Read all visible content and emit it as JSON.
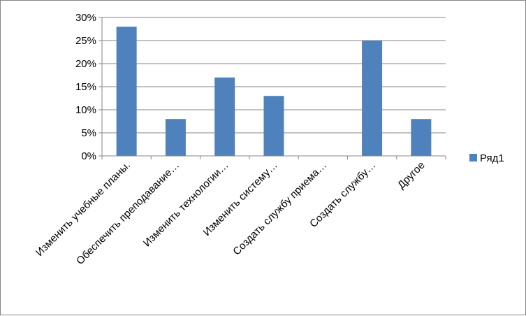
{
  "chart_data": {
    "type": "bar",
    "categories": [
      "Изменить учебные планы.",
      "Обеспечить преподавание…",
      "Изменить технологии…",
      "Изменить систему…",
      "Создать службу приема…",
      "Создать службу…",
      "Другое"
    ],
    "series": [
      {
        "name": "Ряд1",
        "values": [
          28,
          8,
          17,
          13,
          0,
          25,
          8
        ]
      }
    ],
    "yticks": [
      "0%",
      "5%",
      "10%",
      "15%",
      "20%",
      "25%",
      "30%"
    ],
    "ylim": [
      0,
      30
    ],
    "grid": true,
    "legend": "right",
    "colors": {
      "bar": "#4f81bd",
      "grid": "#868686",
      "axis": "#868686"
    }
  }
}
